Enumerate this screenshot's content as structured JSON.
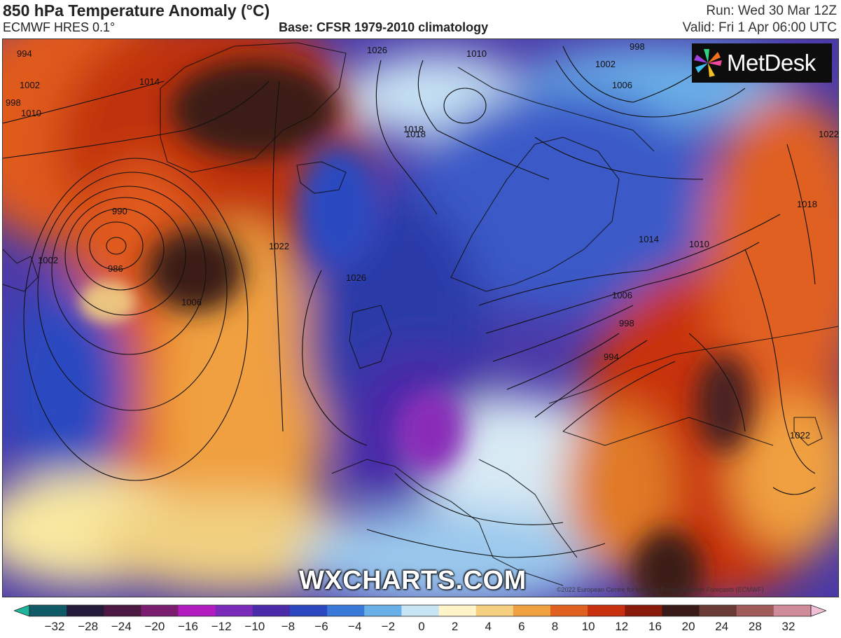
{
  "header": {
    "title": "850 hPa Temperature Anomaly (°C)",
    "model": "ECMWF HRES 0.1°",
    "base": "Base: CFSR 1979-2010 climatology",
    "run": "Run: Wed 30 Mar 12Z",
    "valid": "Valid: Fri 1 Apr 06:00 UTC"
  },
  "logo": {
    "text": "MetDesk",
    "icon": "pinwheel-logo-icon"
  },
  "watermark": "WXCHARTS.COM",
  "copyright": "©2022 European Centre for Medium-Range Weather Forecasts (ECMWF)",
  "isobars": {
    "unit": "hPa",
    "labels": [
      "994",
      "1002",
      "998",
      "1010",
      "1018",
      "1026",
      "1014",
      "990",
      "986",
      "1002",
      "1006",
      "1022",
      "1026",
      "1010",
      "1002",
      "998",
      "1006",
      "1018",
      "1014",
      "1010",
      "1006",
      "998",
      "994",
      "1022",
      "1018",
      "1022"
    ]
  },
  "colorbar": {
    "tick_labels": [
      "−32",
      "−28",
      "−24",
      "−20",
      "−16",
      "−12",
      "−10",
      "−8",
      "−6",
      "−4",
      "−2",
      "0",
      "2",
      "4",
      "6",
      "8",
      "10",
      "12",
      "16",
      "20",
      "24",
      "28",
      "32"
    ],
    "colors": [
      "#1fb59a",
      "#0f5a66",
      "#241a3a",
      "#4a1840",
      "#7a1c70",
      "#b01cc0",
      "#7a2ab8",
      "#4a2aa8",
      "#2c48c0",
      "#3a78d8",
      "#6ab0e8",
      "#c8e4f4",
      "#fff4c8",
      "#f4d080",
      "#f0a040",
      "#e06020",
      "#c83010",
      "#8a1a0a",
      "#3a1a18",
      "#6a3a34",
      "#a05a5a",
      "#d08a9a",
      "#f0c0d8"
    ]
  }
}
